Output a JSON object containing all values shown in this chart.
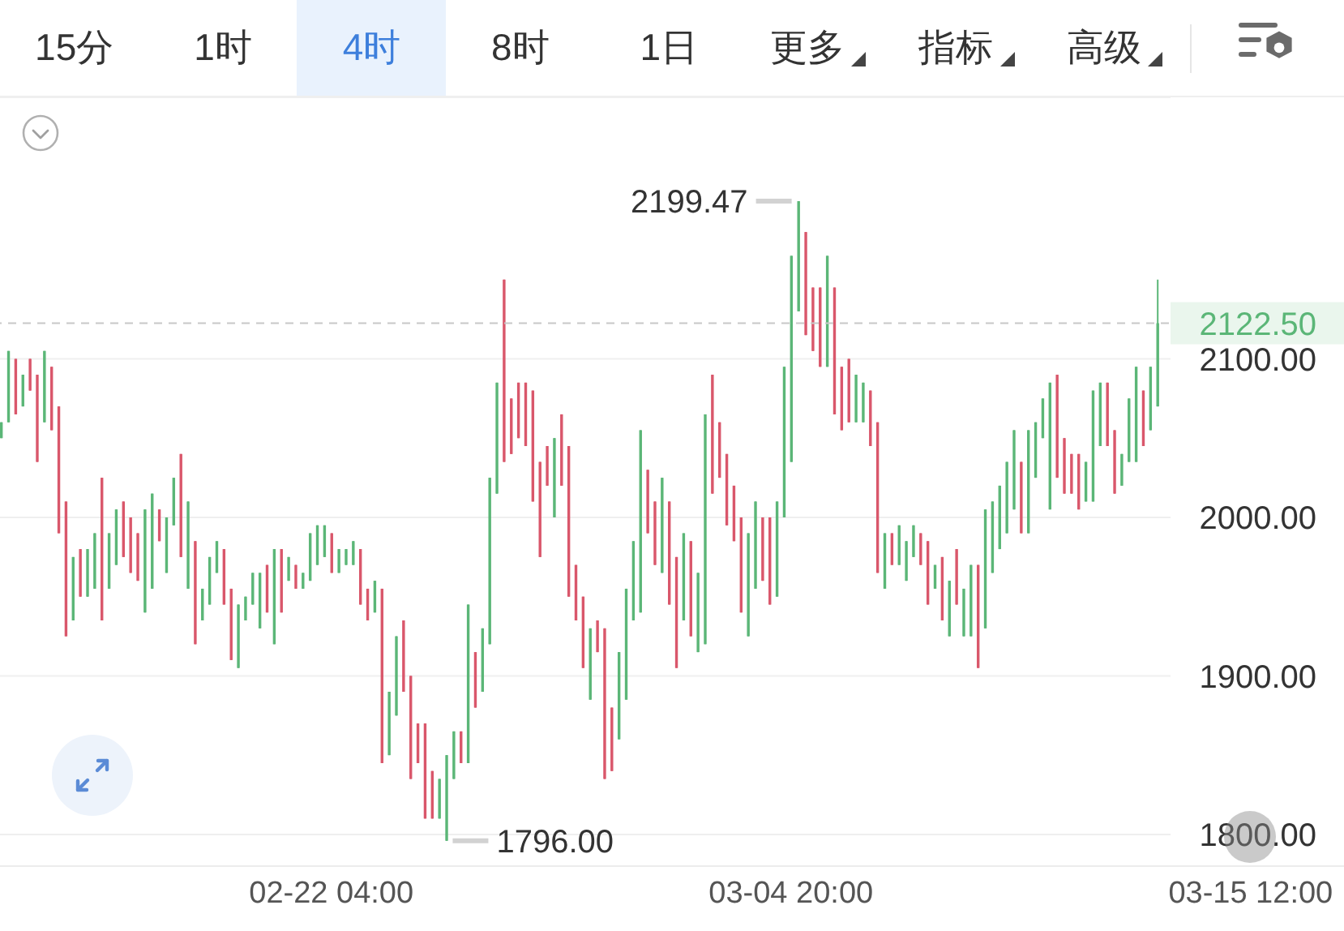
{
  "chart_data": {
    "type": "candlestick",
    "x": [
      "--02-14T12:00",
      "--02-14T16:00",
      "--02-14T20:00",
      "--02-15T00:00",
      "--02-15T04:00",
      "--02-15T08:00",
      "--02-15T12:00",
      "--02-15T16:00",
      "--02-15T20:00",
      "--02-16T00:00",
      "--02-16T04:00",
      "--02-16T08:00",
      "--02-16T12:00",
      "--02-16T16:00",
      "--02-16T20:00",
      "--02-17T00:00",
      "--02-17T04:00",
      "--02-17T08:00",
      "--02-17T12:00",
      "--02-17T16:00",
      "--02-17T20:00",
      "--02-18T00:00",
      "--02-18T04:00",
      "--02-18T08:00",
      "--02-18T12:00",
      "--02-18T16:00",
      "--02-18T20:00",
      "--02-19T00:00",
      "--02-19T04:00",
      "--02-19T08:00",
      "--02-19T12:00",
      "--02-19T16:00",
      "--02-19T20:00",
      "--02-20T00:00",
      "--02-20T04:00",
      "--02-20T08:00",
      "--02-20T12:00",
      "--02-20T16:00",
      "--02-20T20:00",
      "--02-21T00:00",
      "--02-21T04:00",
      "--02-21T08:00",
      "--02-21T12:00",
      "--02-21T16:00",
      "--02-21T20:00",
      "--02-22T00:00",
      "--02-22T04:00",
      "--02-22T08:00",
      "--02-22T12:00",
      "--02-22T16:00",
      "--02-22T20:00",
      "--02-23T00:00",
      "--02-23T04:00",
      "--02-23T08:00",
      "--02-23T12:00",
      "--02-23T16:00",
      "--02-23T20:00",
      "--02-24T00:00",
      "--02-24T04:00",
      "--02-24T08:00",
      "--02-24T12:00",
      "--02-24T16:00",
      "--02-24T20:00",
      "--02-25T00:00",
      "--02-25T04:00",
      "--02-25T08:00",
      "--02-25T12:00",
      "--02-25T16:00",
      "--02-25T20:00",
      "--02-26T00:00",
      "--02-26T04:00",
      "--02-26T08:00",
      "--02-26T12:00",
      "--02-26T16:00",
      "--02-26T20:00",
      "--02-27T00:00",
      "--02-27T04:00",
      "--02-27T08:00",
      "--02-27T12:00",
      "--02-27T16:00",
      "--02-27T20:00",
      "--02-28T00:00",
      "--02-28T04:00",
      "--02-28T08:00",
      "--02-28T12:00",
      "--02-28T16:00",
      "--02-28T20:00",
      "--03-01T00:00",
      "--03-01T04:00",
      "--03-01T08:00",
      "--03-01T12:00",
      "--03-01T16:00",
      "--03-01T20:00",
      "--03-02T00:00",
      "--03-02T04:00",
      "--03-02T08:00",
      "--03-02T12:00",
      "--03-02T16:00",
      "--03-02T20:00",
      "--03-03T00:00",
      "--03-03T04:00",
      "--03-03T08:00",
      "--03-03T12:00",
      "--03-03T16:00",
      "--03-03T20:00",
      "--03-04T00:00",
      "--03-04T04:00",
      "--03-04T08:00",
      "--03-04T12:00",
      "--03-04T16:00",
      "--03-04T20:00",
      "--03-05T00:00",
      "--03-05T04:00",
      "--03-05T08:00",
      "--03-05T12:00",
      "--03-05T16:00",
      "--03-05T20:00",
      "--03-06T00:00",
      "--03-06T04:00",
      "--03-06T08:00",
      "--03-06T12:00",
      "--03-06T16:00",
      "--03-06T20:00",
      "--03-07T00:00",
      "--03-07T04:00",
      "--03-07T08:00",
      "--03-07T12:00",
      "--03-07T16:00",
      "--03-07T20:00",
      "--03-08T00:00",
      "--03-08T04:00",
      "--03-08T08:00",
      "--03-08T12:00",
      "--03-08T16:00",
      "--03-08T20:00",
      "--03-09T00:00",
      "--03-09T04:00",
      "--03-09T08:00",
      "--03-09T12:00",
      "--03-09T16:00",
      "--03-09T20:00",
      "--03-10T00:00",
      "--03-10T04:00",
      "--03-10T08:00",
      "--03-10T12:00",
      "--03-10T16:00",
      "--03-10T20:00",
      "--03-11T00:00",
      "--03-11T04:00",
      "--03-11T08:00",
      "--03-11T12:00",
      "--03-11T16:00",
      "--03-11T20:00",
      "--03-12T00:00",
      "--03-12T04:00",
      "--03-12T08:00",
      "--03-12T12:00",
      "--03-12T16:00",
      "--03-12T20:00",
      "--03-13T00:00",
      "--03-13T04:00",
      "--03-13T08:00"
    ],
    "ohlc": [
      [
        2050,
        2060,
        2050,
        2060
      ],
      [
        2060,
        2105,
        2060,
        2105
      ],
      [
        2100,
        2100,
        2065,
        2065
      ],
      [
        2070,
        2090,
        2070,
        2090
      ],
      [
        2100,
        2100,
        2080,
        2080
      ],
      [
        2090,
        2090,
        2035,
        2035
      ],
      [
        2060,
        2105,
        2060,
        2105
      ],
      [
        2095,
        2095,
        2055,
        2055
      ],
      [
        2070,
        2070,
        1990,
        1990
      ],
      [
        2010,
        2010,
        1925,
        1925
      ],
      [
        1935,
        1975,
        1935,
        1975
      ],
      [
        1980,
        1980,
        1950,
        1950
      ],
      [
        1950,
        1980,
        1950,
        1980
      ],
      [
        1955,
        1990,
        1955,
        1990
      ],
      [
        2025,
        2025,
        1935,
        1935
      ],
      [
        1955,
        1990,
        1955,
        1990
      ],
      [
        1970,
        2005,
        1970,
        2005
      ],
      [
        2010,
        2010,
        1975,
        1975
      ],
      [
        2000,
        2000,
        1965,
        1965
      ],
      [
        1990,
        1990,
        1960,
        1960
      ],
      [
        1940,
        2005,
        1940,
        2005
      ],
      [
        1955,
        2015,
        1955,
        2015
      ],
      [
        2005,
        2005,
        1985,
        1985
      ],
      [
        1965,
        2000,
        1965,
        2000
      ],
      [
        1995,
        2025,
        1995,
        2025
      ],
      [
        2040,
        2040,
        1975,
        1975
      ],
      [
        1955,
        2010,
        1955,
        2010
      ],
      [
        1985,
        1985,
        1920,
        1920
      ],
      [
        1935,
        1955,
        1935,
        1955
      ],
      [
        1945,
        1975,
        1945,
        1975
      ],
      [
        1965,
        1985,
        1965,
        1985
      ],
      [
        1980,
        1980,
        1945,
        1945
      ],
      [
        1955,
        1955,
        1910,
        1910
      ],
      [
        1905,
        1945,
        1905,
        1945
      ],
      [
        1935,
        1950,
        1935,
        1950
      ],
      [
        1945,
        1965,
        1945,
        1965
      ],
      [
        1930,
        1965,
        1930,
        1965
      ],
      [
        1970,
        1970,
        1940,
        1940
      ],
      [
        1920,
        1980,
        1920,
        1980
      ],
      [
        1980,
        1980,
        1940,
        1940
      ],
      [
        1960,
        1975,
        1960,
        1975
      ],
      [
        1970,
        1970,
        1955,
        1955
      ],
      [
        1955,
        1965,
        1955,
        1965
      ],
      [
        1960,
        1990,
        1960,
        1990
      ],
      [
        1970,
        1995,
        1970,
        1995
      ],
      [
        1975,
        1995,
        1975,
        1995
      ],
      [
        1990,
        1990,
        1965,
        1965
      ],
      [
        1965,
        1980,
        1965,
        1980
      ],
      [
        1970,
        1980,
        1970,
        1980
      ],
      [
        1970,
        1985,
        1970,
        1985
      ],
      [
        1980,
        1980,
        1945,
        1945
      ],
      [
        1955,
        1955,
        1935,
        1935
      ],
      [
        1940,
        1960,
        1940,
        1960
      ],
      [
        1955,
        1955,
        1845,
        1845
      ],
      [
        1850,
        1890,
        1850,
        1890
      ],
      [
        1875,
        1925,
        1875,
        1925
      ],
      [
        1935,
        1935,
        1890,
        1890
      ],
      [
        1900,
        1900,
        1835,
        1835
      ],
      [
        1870,
        1870,
        1845,
        1845
      ],
      [
        1870,
        1870,
        1810,
        1810
      ],
      [
        1840,
        1840,
        1810,
        1810
      ],
      [
        1810,
        1835,
        1810,
        1835
      ],
      [
        1796,
        1850,
        1796,
        1850
      ],
      [
        1835,
        1865,
        1835,
        1865
      ],
      [
        1865,
        1865,
        1845,
        1845
      ],
      [
        1845,
        1945,
        1845,
        1945
      ],
      [
        1915,
        1915,
        1880,
        1880
      ],
      [
        1890,
        1930,
        1890,
        1930
      ],
      [
        1920,
        2025,
        1920,
        2025
      ],
      [
        2015,
        2085,
        2015,
        2085
      ],
      [
        2150,
        2150,
        2035,
        2035
      ],
      [
        2075,
        2075,
        2040,
        2040
      ],
      [
        2085,
        2085,
        2050,
        2050
      ],
      [
        2085,
        2085,
        2045,
        2045
      ],
      [
        2080,
        2080,
        2010,
        2010
      ],
      [
        2035,
        2035,
        1975,
        1975
      ],
      [
        2045,
        2045,
        2020,
        2020
      ],
      [
        2000,
        2050,
        2000,
        2050
      ],
      [
        2065,
        2065,
        2020,
        2020
      ],
      [
        2045,
        2045,
        1950,
        1950
      ],
      [
        1970,
        1970,
        1935,
        1935
      ],
      [
        1950,
        1950,
        1905,
        1905
      ],
      [
        1885,
        1930,
        1885,
        1930
      ],
      [
        1935,
        1935,
        1915,
        1915
      ],
      [
        1930,
        1930,
        1835,
        1835
      ],
      [
        1880,
        1880,
        1840,
        1840
      ],
      [
        1860,
        1915,
        1860,
        1915
      ],
      [
        1885,
        1955,
        1885,
        1955
      ],
      [
        1935,
        1985,
        1935,
        1985
      ],
      [
        1940,
        2055,
        1940,
        2055
      ],
      [
        2030,
        2030,
        1990,
        1990
      ],
      [
        2010,
        2010,
        1970,
        1970
      ],
      [
        1965,
        2025,
        1965,
        2025
      ],
      [
        2010,
        2010,
        1945,
        1945
      ],
      [
        1975,
        1975,
        1905,
        1905
      ],
      [
        1935,
        1990,
        1935,
        1990
      ],
      [
        1985,
        1985,
        1925,
        1925
      ],
      [
        1915,
        1965,
        1915,
        1965
      ],
      [
        1920,
        2065,
        1920,
        2065
      ],
      [
        2090,
        2090,
        2015,
        2015
      ],
      [
        2060,
        2060,
        2025,
        2025
      ],
      [
        2040,
        2040,
        1995,
        1995
      ],
      [
        2020,
        2020,
        1985,
        1985
      ],
      [
        2000,
        2000,
        1940,
        1940
      ],
      [
        1925,
        1990,
        1925,
        1990
      ],
      [
        1955,
        2010,
        1955,
        2010
      ],
      [
        2000,
        2000,
        1960,
        1960
      ],
      [
        2000,
        2000,
        1945,
        1945
      ],
      [
        1950,
        2010,
        1950,
        2010
      ],
      [
        2000,
        2095,
        2000,
        2095
      ],
      [
        2035,
        2165,
        2035,
        2165
      ],
      [
        2130,
        2199.47,
        2130,
        2199.47
      ],
      [
        2180,
        2180,
        2115,
        2115
      ],
      [
        2145,
        2145,
        2105,
        2105
      ],
      [
        2145,
        2145,
        2095,
        2095
      ],
      [
        2095,
        2165,
        2095,
        2165
      ],
      [
        2145,
        2145,
        2065,
        2065
      ],
      [
        2095,
        2095,
        2055,
        2055
      ],
      [
        2100,
        2100,
        2060,
        2060
      ],
      [
        2060,
        2090,
        2060,
        2090
      ],
      [
        2060,
        2085,
        2060,
        2085
      ],
      [
        2080,
        2080,
        2045,
        2045
      ],
      [
        2060,
        2060,
        1965,
        1965
      ],
      [
        1955,
        1990,
        1955,
        1990
      ],
      [
        1990,
        1990,
        1970,
        1970
      ],
      [
        1970,
        1995,
        1970,
        1995
      ],
      [
        1960,
        1985,
        1960,
        1985
      ],
      [
        1975,
        1995,
        1975,
        1995
      ],
      [
        1990,
        1990,
        1970,
        1970
      ],
      [
        1985,
        1985,
        1945,
        1945
      ],
      [
        1955,
        1970,
        1955,
        1970
      ],
      [
        1975,
        1975,
        1935,
        1935
      ],
      [
        1925,
        1960,
        1925,
        1960
      ],
      [
        1980,
        1980,
        1945,
        1945
      ],
      [
        1925,
        1955,
        1925,
        1955
      ],
      [
        1925,
        1970,
        1925,
        1970
      ],
      [
        1970,
        1970,
        1905,
        1905
      ],
      [
        1930,
        2005,
        1930,
        2005
      ],
      [
        1965,
        2010,
        1965,
        2010
      ],
      [
        1980,
        2020,
        1980,
        2020
      ],
      [
        1990,
        2035,
        1990,
        2035
      ],
      [
        2005,
        2055,
        2005,
        2055
      ],
      [
        2035,
        2035,
        1990,
        1990
      ],
      [
        1990,
        2055,
        1990,
        2055
      ],
      [
        2025,
        2060,
        2025,
        2060
      ],
      [
        2050,
        2075,
        2050,
        2075
      ],
      [
        2005,
        2085,
        2005,
        2085
      ],
      [
        2090,
        2090,
        2025,
        2025
      ],
      [
        2050,
        2050,
        2015,
        2015
      ],
      [
        2040,
        2040,
        2015,
        2015
      ],
      [
        2040,
        2040,
        2005,
        2005
      ],
      [
        2010,
        2035,
        2010,
        2035
      ],
      [
        2010,
        2080,
        2010,
        2080
      ],
      [
        2045,
        2085,
        2045,
        2085
      ],
      [
        2085,
        2085,
        2045,
        2045
      ],
      [
        2055,
        2055,
        2015,
        2015
      ],
      [
        2020,
        2040,
        2020,
        2040
      ],
      [
        2035,
        2075,
        2035,
        2075
      ],
      [
        2035,
        2095,
        2035,
        2095
      ],
      [
        2080,
        2080,
        2045,
        2045
      ],
      [
        2055,
        2095,
        2055,
        2095
      ],
      [
        2070,
        2150,
        2070,
        2122.5
      ]
    ],
    "colors": [
      "#5bb677",
      "#5bb677",
      "#d9576b",
      "#5bb677",
      "#d9576b",
      "#d9576b",
      "#5bb677",
      "#d9576b",
      "#d9576b",
      "#d9576b",
      "#5bb677",
      "#d9576b",
      "#5bb677",
      "#5bb677",
      "#d9576b",
      "#5bb677",
      "#5bb677",
      "#d9576b",
      "#d9576b",
      "#d9576b",
      "#5bb677",
      "#5bb677",
      "#d9576b",
      "#5bb677",
      "#5bb677",
      "#d9576b",
      "#5bb677",
      "#d9576b",
      "#5bb677",
      "#5bb677",
      "#5bb677",
      "#d9576b",
      "#d9576b",
      "#5bb677",
      "#5bb677",
      "#5bb677",
      "#5bb677",
      "#d9576b",
      "#5bb677",
      "#d9576b",
      "#5bb677",
      "#d9576b",
      "#5bb677",
      "#5bb677",
      "#5bb677",
      "#5bb677",
      "#d9576b",
      "#5bb677",
      "#5bb677",
      "#5bb677",
      "#d9576b",
      "#d9576b",
      "#5bb677",
      "#d9576b",
      "#5bb677",
      "#5bb677",
      "#d9576b",
      "#d9576b",
      "#d9576b",
      "#d9576b",
      "#d9576b",
      "#5bb677",
      "#5bb677",
      "#5bb677",
      "#d9576b",
      "#5bb677",
      "#d9576b",
      "#5bb677",
      "#5bb677",
      "#5bb677",
      "#d9576b",
      "#d9576b",
      "#d9576b",
      "#d9576b",
      "#d9576b",
      "#d9576b",
      "#d9576b",
      "#5bb677",
      "#d9576b",
      "#d9576b",
      "#d9576b",
      "#d9576b",
      "#5bb677",
      "#d9576b",
      "#d9576b",
      "#d9576b",
      "#5bb677",
      "#5bb677",
      "#5bb677",
      "#5bb677",
      "#d9576b",
      "#d9576b",
      "#5bb677",
      "#d9576b",
      "#d9576b",
      "#5bb677",
      "#d9576b",
      "#5bb677",
      "#5bb677",
      "#d9576b",
      "#d9576b",
      "#d9576b",
      "#d9576b",
      "#d9576b",
      "#5bb677",
      "#5bb677",
      "#d9576b",
      "#d9576b",
      "#5bb677",
      "#5bb677",
      "#5bb677",
      "#5bb677",
      "#d9576b",
      "#d9576b",
      "#d9576b",
      "#5bb677",
      "#d9576b",
      "#d9576b",
      "#d9576b",
      "#5bb677",
      "#5bb677",
      "#d9576b",
      "#d9576b",
      "#5bb677",
      "#d9576b",
      "#5bb677",
      "#5bb677",
      "#5bb677",
      "#d9576b",
      "#d9576b",
      "#5bb677",
      "#d9576b",
      "#5bb677",
      "#d9576b",
      "#5bb677",
      "#5bb677",
      "#d9576b",
      "#5bb677",
      "#5bb677",
      "#5bb677",
      "#5bb677",
      "#5bb677",
      "#d9576b",
      "#5bb677",
      "#5bb677",
      "#5bb677",
      "#5bb677",
      "#d9576b",
      "#d9576b",
      "#d9576b",
      "#d9576b",
      "#5bb677",
      "#5bb677",
      "#5bb677",
      "#d9576b",
      "#d9576b",
      "#5bb677",
      "#5bb677",
      "#5bb677",
      "#d9576b",
      "#5bb677",
      "#5bb677"
    ],
    "xlim": [
      "--02-14T11:30",
      "--03-17T16:00"
    ],
    "xticks": [
      {
        "value": "--02-22T04:00",
        "label": "02-22 04:00"
      },
      {
        "value": "--03-04T20:00",
        "label": "03-04 20:00"
      },
      {
        "value": "--03-15T12:00",
        "label": "03-15 12:00"
      }
    ],
    "ylim": [
      1780,
      2265
    ],
    "yticks": [
      {
        "value": 1800,
        "label": "1800.00"
      },
      {
        "value": 1900,
        "label": "1900.00"
      },
      {
        "value": 2000,
        "label": "2000.00"
      },
      {
        "value": 2100,
        "label": "2100.00"
      }
    ],
    "grid": "y",
    "ref_lines": [
      {
        "axis": "y",
        "value": 2122.5,
        "label": "2122.50",
        "color": "#c8c8c8",
        "line_style": "dashed"
      }
    ],
    "annotations": [
      "15分",
      "1时",
      "4时",
      "8时",
      "1日",
      "更多",
      "指标",
      "高级",
      {
        "text": "2199.47",
        "x": "--03-05T00:00",
        "y": 2199.47
      },
      {
        "text": "1796.00",
        "x": "--02-24T20:00",
        "y": 1796
      }
    ]
  }
}
